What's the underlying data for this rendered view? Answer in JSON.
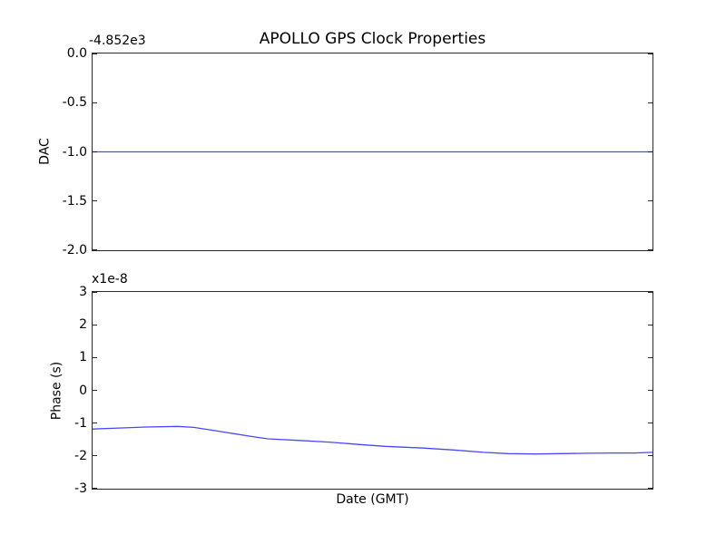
{
  "figure": {
    "background": "#ffffff",
    "axis_color": "#2a2a2a",
    "text_color": "#000000"
  },
  "chart_data": [
    {
      "type": "line",
      "id": "dac",
      "title": "APOLLO GPS Clock Properties",
      "ylabel": "DAC",
      "offset_text": "-4.852e3",
      "ylim": [
        -2.0,
        0.0
      ],
      "yticks": [
        0.0,
        -0.5,
        -1.0,
        -1.5,
        -2.0
      ],
      "ytick_labels": [
        "0.0",
        "-0.5",
        "-1.0",
        "-1.5",
        "-2.0"
      ],
      "xticks": [],
      "grid": false,
      "legend": "none",
      "series": [
        {
          "name": "DAC",
          "color": "#0000ff",
          "x": [
            0.0,
            1.0
          ],
          "y": [
            -1.0,
            -1.0
          ]
        }
      ]
    },
    {
      "type": "line",
      "id": "phase",
      "xlabel": "Date (GMT)",
      "ylabel": "Phase (s)",
      "multiplier_text": "x1e-8",
      "ylim": [
        -3,
        3
      ],
      "yticks": [
        3,
        2,
        1,
        0,
        -1,
        -2,
        -3
      ],
      "ytick_labels": [
        "3",
        "2",
        "1",
        "0",
        "-1",
        "-2",
        "-3"
      ],
      "xticks": [],
      "grid": false,
      "legend": "none",
      "series": [
        {
          "name": "Phase",
          "color": "#0000ff",
          "x": [
            0.0,
            0.047,
            0.095,
            0.152,
            0.181,
            0.233,
            0.281,
            0.313,
            0.37,
            0.422,
            0.475,
            0.523,
            0.591,
            0.645,
            0.698,
            0.742,
            0.79,
            0.838,
            0.887,
            0.935,
            0.968,
            1.0
          ],
          "y": [
            -1.18,
            -1.15,
            -1.12,
            -1.1,
            -1.13,
            -1.27,
            -1.4,
            -1.48,
            -1.53,
            -1.58,
            -1.65,
            -1.71,
            -1.76,
            -1.82,
            -1.89,
            -1.93,
            -1.94,
            -1.93,
            -1.92,
            -1.91,
            -1.91,
            -1.89
          ]
        }
      ]
    }
  ]
}
